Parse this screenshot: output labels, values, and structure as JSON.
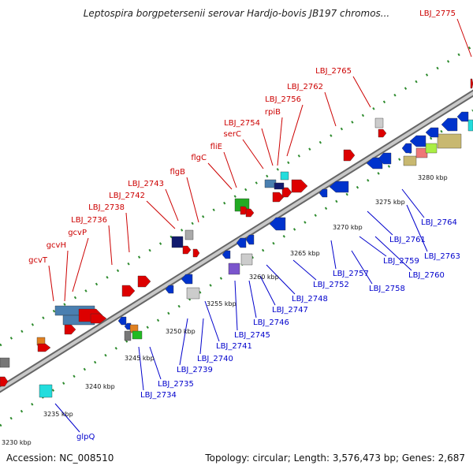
{
  "title": "Leptospira borgpetersenii serovar Hardjo-bovis JB197 chromos...",
  "footer": {
    "accession": "Accession: NC_008510",
    "topology": "Topology: circular; Length: 3,576,473 bp; Genes: 2,687"
  },
  "colors": {
    "forward_label": "#cc0000",
    "reverse_label": "#0000cc",
    "backbone": "#9a9a9a",
    "dots": "#2e8b2e"
  },
  "scale_labels": [
    "3230 kbp",
    "3235 kbp",
    "3240 kbp",
    "3245 kbp",
    "3250 kbp",
    "3255 kbp",
    "3260 kbp",
    "3265 kbp",
    "3270 kbp",
    "3275 kbp",
    "3280 kbp"
  ],
  "forward_labels": [
    "gcvT",
    "gcvH",
    "gcvP",
    "LBJ_2736",
    "LBJ_2738",
    "LBJ_2742",
    "LBJ_2743",
    "flgB",
    "flgC",
    "fliE",
    "serC",
    "LBJ_2754",
    "rpiB",
    "LBJ_2756",
    "LBJ_2762",
    "LBJ_2765",
    "LBJ_2775"
  ],
  "reverse_labels": [
    "glpQ",
    "LBJ_2734",
    "LBJ_2735",
    "LBJ_2739",
    "LBJ_2740",
    "LBJ_2741",
    "LBJ_2745",
    "LBJ_2746",
    "LBJ_2747",
    "LBJ_2748",
    "LBJ_2752",
    "LBJ_2757",
    "LBJ_2758",
    "LBJ_2759",
    "LBJ_2760",
    "LBJ_2761",
    "LBJ_2763",
    "LBJ_2764"
  ]
}
